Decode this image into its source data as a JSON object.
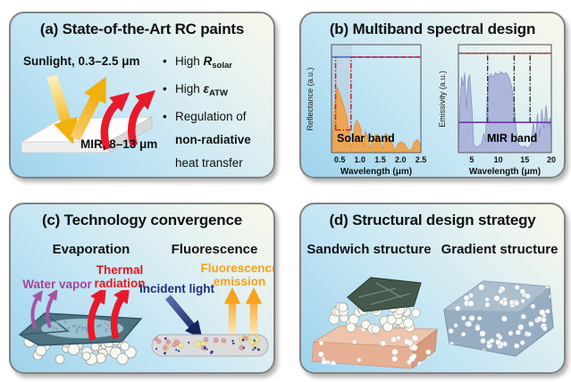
{
  "panels": {
    "a": {
      "title": "(a) State-of-the-Art RC paints",
      "sunlight_label": "Sunlight, 0.3–2.5 μm",
      "mir_label": "MIR, 8–13 μm",
      "bullet1": {
        "prefix": "High ",
        "symbol": "R",
        "subscript": "solar"
      },
      "bullet2": {
        "prefix": "High ",
        "symbol": "ε",
        "subscript": "ATW"
      },
      "bullet3": {
        "line1": "Regulation of",
        "line2": "non-radiative",
        "line3": "heat transfer"
      }
    },
    "b": {
      "title": "(b) Multiband spectral design",
      "solar_chart": {
        "ylabel": "Reflectance (a.u.)",
        "xlabel": "Wavelength (μm)",
        "band_label": "Solar band"
      },
      "mir_chart": {
        "ylabel": "Emissivity (a.u.)",
        "xlabel": "Wavelength (μm)",
        "band_label": "MIR band"
      }
    },
    "c": {
      "title": "(c) Technology convergence",
      "left_heading": "Evaporation",
      "right_heading": "Fluorescence",
      "water_vapor": "Water vapor",
      "thermal_line1": "Thermal",
      "thermal_line2": "radiation",
      "incident_light": "Incident light",
      "fluorescence_line1": "Fluorescence",
      "fluorescence_line2": "emission"
    },
    "d": {
      "title": "(d) Structural design strategy",
      "left_heading": "Sandwich structure",
      "right_heading": "Gradient structure"
    }
  },
  "colors": {
    "water_vapor_text": "#a0459b",
    "thermal_radiation_text": "#e8151e",
    "incident_light_text": "#1c2f7e",
    "fluorescence_text": "#f6a21c",
    "solar_spectrum_fill": "#f0a24a",
    "mir_spectrum_fill": "#a9b1d9",
    "reflectance_target_line": "#4a6fc3",
    "red_dashed_target": "#e02424",
    "emissivity_target_line": "#cc4848",
    "emissivity_baseline": "#7040a8",
    "panel_background_blue": "#9dd3ec"
  },
  "chart_data": [
    {
      "type": "area",
      "name": "solar_band_reflectance",
      "xlabel": "Wavelength (μm)",
      "ylabel": "Reflectance (a.u.)",
      "band_label": "Solar band",
      "xlim": [
        0.3,
        2.5
      ],
      "xticks": [
        0.5,
        1.0,
        1.5,
        2.0,
        2.5
      ],
      "tick_decimals": 1,
      "x": [
        0.3,
        0.33,
        0.36,
        0.4,
        0.44,
        0.48,
        0.52,
        0.57,
        0.62,
        0.67,
        0.72,
        0.76,
        0.8,
        0.84,
        0.88,
        0.92,
        0.97,
        1.02,
        1.08,
        1.13,
        1.18,
        1.25,
        1.32,
        1.4,
        1.48,
        1.56,
        1.63,
        1.7,
        1.78,
        1.86,
        1.94,
        2.02,
        2.1,
        2.18,
        2.26,
        2.34,
        2.42,
        2.5
      ],
      "y": [
        0.02,
        0.15,
        0.35,
        0.52,
        0.6,
        0.57,
        0.52,
        0.47,
        0.41,
        0.34,
        0.22,
        0.1,
        0.04,
        0.16,
        0.27,
        0.3,
        0.27,
        0.22,
        0.05,
        0.2,
        0.16,
        0.03,
        0.14,
        0.17,
        0.15,
        0.03,
        0.18,
        0.16,
        0.1,
        0.02,
        0.08,
        0.1,
        0.08,
        0.03,
        0.02,
        0.1,
        0.12,
        0.06
      ],
      "annotations": [
        {
          "kind": "band",
          "x1": 0.3,
          "x2": 0.8,
          "fill": "#b9c9d6",
          "opacity": 0.45
        },
        {
          "kind": "hline",
          "y": 0.885,
          "x1": 0.3,
          "x2": 2.5,
          "color": "#4a6fc3",
          "width": 1.6
        },
        {
          "kind": "hline",
          "y": 0.885,
          "x1": 0.78,
          "x2": 2.5,
          "color": "#e02424",
          "width": 1.6,
          "dash": "5,3"
        },
        {
          "kind": "vline",
          "x": 0.4,
          "y1": 0.21,
          "y2": 0.885,
          "color": "#d42020",
          "width": 1.5,
          "dash": "6,2,1.5,2"
        },
        {
          "kind": "vline",
          "x": 0.78,
          "y1": 0.21,
          "y2": 0.885,
          "color": "#d42020",
          "width": 1.5,
          "dash": "6,2,1.5,2"
        },
        {
          "kind": "hline",
          "y": 0.21,
          "x1": 0.4,
          "x2": 0.78,
          "color": "#d42020",
          "width": 1.5,
          "dash": "6,2,1.5,2"
        }
      ],
      "fill": "#f0a24a",
      "stroke": "#dd8f33"
    },
    {
      "type": "area",
      "name": "mir_band_emissivity",
      "xlabel": "Wavelength (μm)",
      "ylabel": "Emissivity (a.u.)",
      "band_label": "MIR band",
      "xlim": [
        2.5,
        20
      ],
      "xticks": [
        5,
        10,
        15,
        20
      ],
      "tick_decimals": 0,
      "x": [
        2.5,
        2.8,
        3.1,
        3.4,
        3.7,
        4.0,
        4.3,
        4.6,
        5.0,
        5.4,
        5.8,
        6.3,
        6.8,
        7.3,
        7.6,
        7.9,
        8.2,
        8.6,
        9.0,
        9.5,
        10.0,
        10.5,
        11.0,
        11.5,
        12.0,
        12.5,
        13.0,
        13.4,
        13.8,
        14.3,
        15.0,
        15.6,
        16.2,
        16.6,
        17.0,
        17.4,
        17.8,
        18.2,
        18.6,
        19.0,
        19.4,
        19.8,
        20.0
      ],
      "y": [
        0.06,
        0.45,
        0.7,
        0.62,
        0.74,
        0.4,
        0.66,
        0.72,
        0.45,
        0.08,
        0.05,
        0.06,
        0.08,
        0.18,
        0.1,
        0.5,
        0.7,
        0.73,
        0.7,
        0.74,
        0.72,
        0.75,
        0.73,
        0.74,
        0.7,
        0.62,
        0.45,
        0.2,
        0.08,
        0.05,
        0.06,
        0.04,
        0.08,
        0.28,
        0.12,
        0.36,
        0.15,
        0.4,
        0.22,
        0.44,
        0.25,
        0.32,
        0.1
      ],
      "annotations": [
        {
          "kind": "hline",
          "y": 0.92,
          "x1": 2.5,
          "x2": 20,
          "color": "#cc4848",
          "width": 1.6
        },
        {
          "kind": "hline",
          "y": 0.92,
          "x1": 2.5,
          "x2": 20,
          "color": "#555555",
          "width": 1.1,
          "dash": "5,3"
        },
        {
          "kind": "hline",
          "y": 0.28,
          "x1": 2.5,
          "x2": 20,
          "color": "#7040a8",
          "width": 1.8
        },
        {
          "kind": "vline",
          "x": 8,
          "y1": 0.28,
          "y2": 0.92,
          "color": "#333333",
          "width": 1.4,
          "dash": "6,2,1.5,2"
        },
        {
          "kind": "vline",
          "x": 13,
          "y1": 0.28,
          "y2": 0.92,
          "color": "#333333",
          "width": 1.4,
          "dash": "6,2,1.5,2"
        },
        {
          "kind": "vline",
          "x": 16,
          "y1": 0.28,
          "y2": 0.92,
          "color": "#333333",
          "width": 1.4,
          "dash": "6,2,1.5,2"
        }
      ],
      "fill": "#a9b1d9",
      "stroke": "#8a93c6"
    }
  ]
}
